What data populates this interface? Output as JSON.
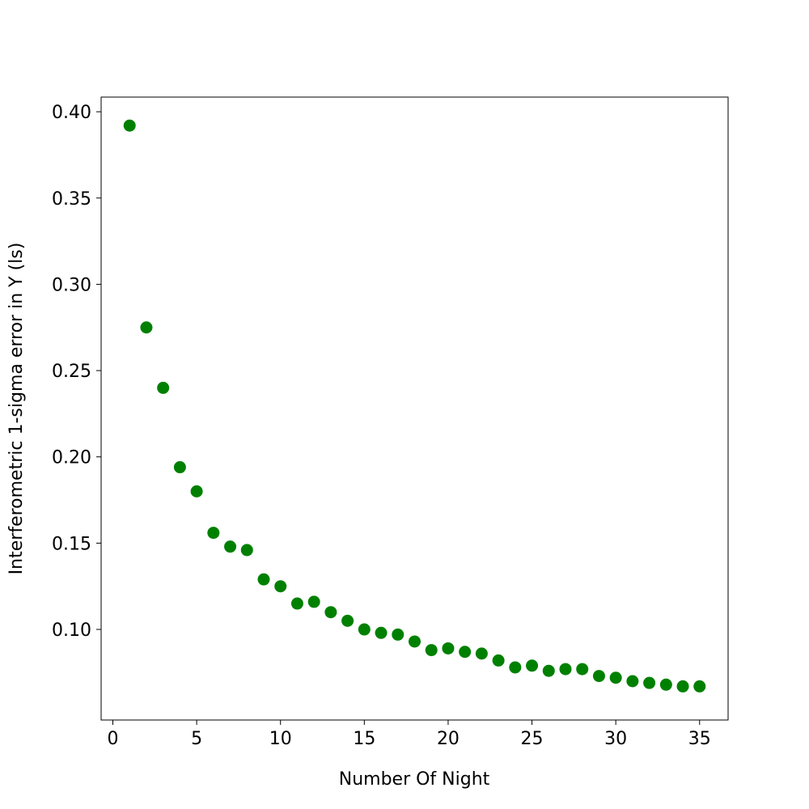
{
  "chart_data": {
    "type": "scatter",
    "title": "",
    "xlabel": "Number Of Night",
    "ylabel": "Interferometric 1-sigma error in Y (ls)",
    "xlim": [
      -0.7,
      36.7
    ],
    "ylim": [
      0.0475,
      0.4085
    ],
    "xticks": [
      0,
      5,
      10,
      15,
      20,
      25,
      30,
      35
    ],
    "xtick_labels": [
      "0",
      "5",
      "10",
      "15",
      "20",
      "25",
      "30",
      "35"
    ],
    "yticks": [
      0.1,
      0.15,
      0.2,
      0.25,
      0.3,
      0.35,
      0.4
    ],
    "ytick_labels": [
      "0.10",
      "0.15",
      "0.20",
      "0.25",
      "0.30",
      "0.35",
      "0.40"
    ],
    "grid": false,
    "marker_color": "#008000",
    "series": [
      {
        "x": [
          1,
          2,
          3,
          4,
          5,
          6,
          7,
          8,
          9,
          10,
          11,
          12,
          13,
          14,
          15,
          16,
          17,
          18,
          19,
          20,
          21,
          22,
          23,
          24,
          25,
          26,
          27,
          28,
          29,
          30,
          31,
          32,
          33,
          34,
          35
        ],
        "y": [
          0.392,
          0.275,
          0.24,
          0.194,
          0.18,
          0.156,
          0.148,
          0.146,
          0.129,
          0.125,
          0.115,
          0.116,
          0.11,
          0.105,
          0.1,
          0.098,
          0.097,
          0.093,
          0.088,
          0.089,
          0.087,
          0.086,
          0.082,
          0.078,
          0.079,
          0.076,
          0.077,
          0.077,
          0.073,
          0.072,
          0.07,
          0.069,
          0.068,
          0.067,
          0.067
        ]
      }
    ]
  }
}
